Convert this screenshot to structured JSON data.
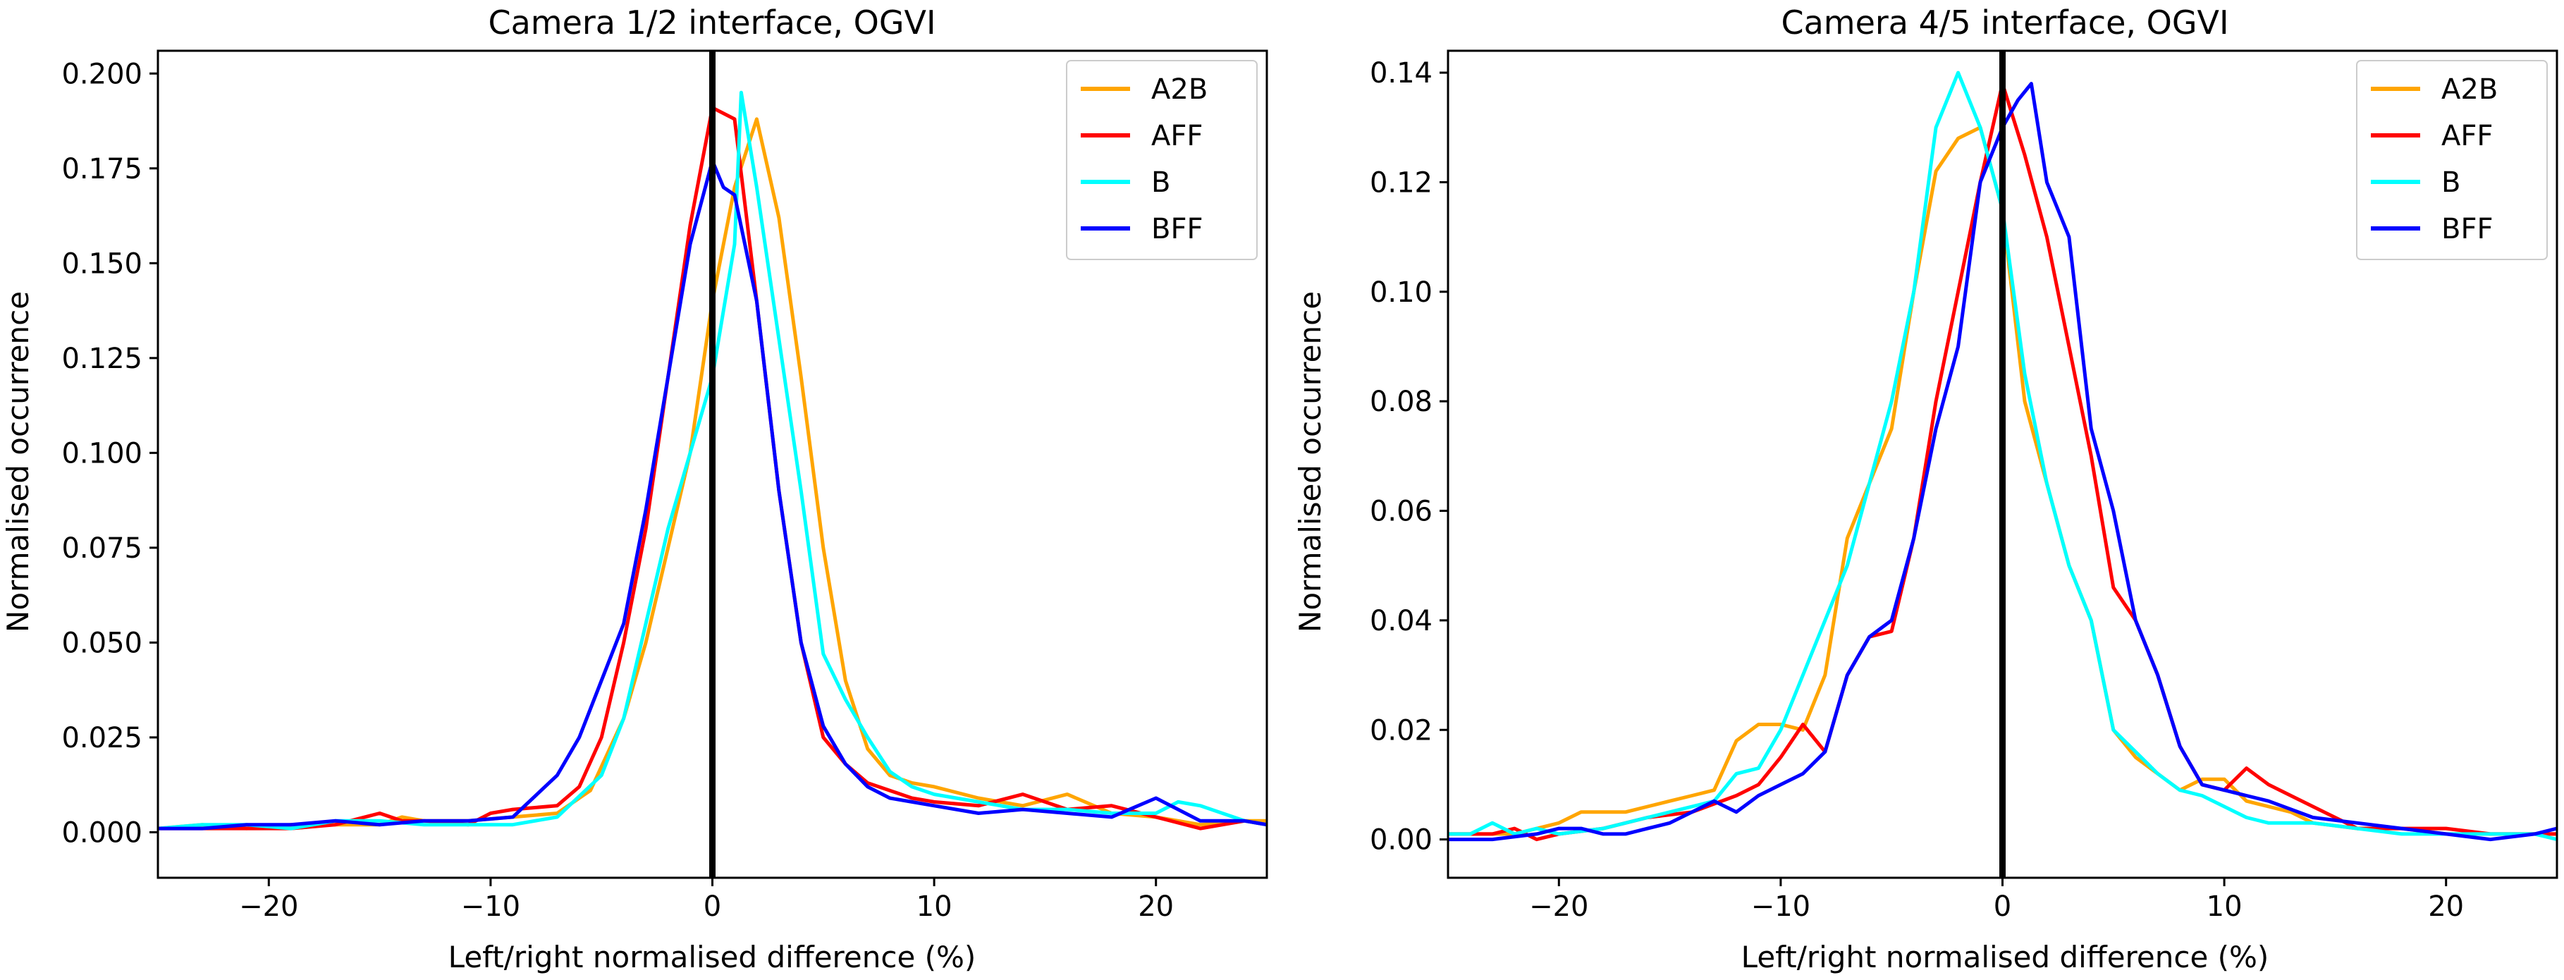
{
  "chart_data": [
    {
      "type": "line",
      "title": "Camera 1/2 interface, OGVI",
      "xlabel": "Left/right normalised difference (%)",
      "ylabel": "Normalised occurrence",
      "xlim": [
        -25,
        25
      ],
      "ylim": [
        -0.012,
        0.206
      ],
      "xticks": [
        -20,
        -10,
        0,
        10,
        20
      ],
      "xtick_labels": [
        "−20",
        "−10",
        "0",
        "10",
        "20"
      ],
      "yticks": [
        0.0,
        0.025,
        0.05,
        0.075,
        0.1,
        0.125,
        0.15,
        0.175,
        0.2
      ],
      "ytick_labels": [
        "0.000",
        "0.025",
        "0.050",
        "0.075",
        "0.100",
        "0.125",
        "0.150",
        "0.175",
        "0.200"
      ],
      "vline_x": 0,
      "legend_position": "upper right",
      "series": [
        {
          "name": "A2B",
          "color": "#ffa500",
          "x": [
            -25,
            -23,
            -21,
            -19,
            -17,
            -15,
            -14,
            -13,
            -11,
            -9,
            -7,
            -5.5,
            -4,
            -3,
            -2,
            -1,
            0,
            1,
            2,
            3,
            4,
            5,
            6,
            7,
            8,
            9,
            10,
            12,
            14,
            16,
            18,
            20,
            22,
            24,
            25
          ],
          "y": [
            0.001,
            0.002,
            0.001,
            0.002,
            0.002,
            0.002,
            0.004,
            0.003,
            0.003,
            0.004,
            0.005,
            0.011,
            0.03,
            0.05,
            0.075,
            0.1,
            0.14,
            0.17,
            0.188,
            0.162,
            0.12,
            0.075,
            0.04,
            0.022,
            0.015,
            0.013,
            0.012,
            0.009,
            0.007,
            0.01,
            0.005,
            0.004,
            0.002,
            0.003,
            0.003
          ]
        },
        {
          "name": "AFF",
          "color": "#ff0000",
          "x": [
            -25,
            -23,
            -21,
            -19,
            -17,
            -15,
            -14,
            -13,
            -11,
            -10,
            -9,
            -7,
            -6,
            -5,
            -4,
            -3,
            -2,
            -1,
            0,
            1,
            2,
            3,
            4,
            5,
            6,
            7,
            8,
            9,
            10,
            12,
            14,
            16,
            18,
            20,
            22,
            24,
            25
          ],
          "y": [
            0.001,
            0.001,
            0.001,
            0.001,
            0.002,
            0.005,
            0.003,
            0.003,
            0.002,
            0.005,
            0.006,
            0.007,
            0.012,
            0.025,
            0.05,
            0.08,
            0.12,
            0.16,
            0.191,
            0.188,
            0.14,
            0.09,
            0.05,
            0.025,
            0.018,
            0.013,
            0.011,
            0.009,
            0.008,
            0.007,
            0.01,
            0.006,
            0.007,
            0.004,
            0.001,
            0.003,
            0.002
          ]
        },
        {
          "name": "B",
          "color": "#00ffff",
          "x": [
            -25,
            -23,
            -21,
            -19,
            -17,
            -15,
            -13,
            -11,
            -9,
            -7,
            -5,
            -4,
            -3,
            -2,
            -1,
            0,
            1,
            1.3,
            2,
            3,
            4,
            5,
            6,
            7,
            8,
            9,
            10,
            12,
            14,
            16,
            18,
            20,
            21,
            22,
            24,
            25
          ],
          "y": [
            0.001,
            0.002,
            0.002,
            0.001,
            0.003,
            0.003,
            0.002,
            0.002,
            0.002,
            0.004,
            0.015,
            0.03,
            0.055,
            0.08,
            0.1,
            0.12,
            0.155,
            0.195,
            0.17,
            0.13,
            0.09,
            0.047,
            0.035,
            0.025,
            0.016,
            0.012,
            0.01,
            0.008,
            0.006,
            0.006,
            0.005,
            0.005,
            0.008,
            0.007,
            0.003,
            0.002
          ]
        },
        {
          "name": "BFF",
          "color": "#0000ff",
          "x": [
            -25,
            -23,
            -21,
            -19,
            -17,
            -15,
            -13,
            -11,
            -9,
            -7,
            -6,
            -5,
            -4,
            -3,
            -2,
            -1,
            0,
            0.5,
            1,
            2,
            3,
            4,
            5,
            6,
            7,
            8,
            9,
            10,
            12,
            14,
            16,
            18,
            20,
            22,
            24,
            25
          ],
          "y": [
            0.001,
            0.001,
            0.002,
            0.002,
            0.003,
            0.002,
            0.003,
            0.003,
            0.004,
            0.015,
            0.025,
            0.04,
            0.055,
            0.085,
            0.12,
            0.155,
            0.177,
            0.17,
            0.168,
            0.14,
            0.09,
            0.05,
            0.028,
            0.018,
            0.012,
            0.009,
            0.008,
            0.007,
            0.005,
            0.006,
            0.005,
            0.004,
            0.009,
            0.003,
            0.003,
            0.002
          ]
        }
      ]
    },
    {
      "type": "line",
      "title": "Camera 4/5 interface, OGVI",
      "xlabel": "Left/right normalised difference (%)",
      "ylabel": "Normalised occurrence",
      "xlim": [
        -25,
        25
      ],
      "ylim": [
        -0.007,
        0.144
      ],
      "xticks": [
        -20,
        -10,
        0,
        10,
        20
      ],
      "xtick_labels": [
        "−20",
        "−10",
        "0",
        "10",
        "20"
      ],
      "yticks": [
        0.0,
        0.02,
        0.04,
        0.06,
        0.08,
        0.1,
        0.12,
        0.14
      ],
      "ytick_labels": [
        "0.00",
        "0.02",
        "0.04",
        "0.06",
        "0.08",
        "0.10",
        "0.12",
        "0.14"
      ],
      "vline_x": 0,
      "legend_position": "upper right",
      "series": [
        {
          "name": "A2B",
          "color": "#ffa500",
          "x": [
            -25,
            -24,
            -22,
            -20,
            -19,
            -18,
            -17,
            -16,
            -15,
            -14,
            -13,
            -12,
            -11,
            -10,
            -9,
            -8,
            -7,
            -6,
            -5,
            -4,
            -3,
            -2,
            -1,
            0,
            1,
            2,
            3,
            4,
            5,
            6,
            7,
            8,
            9,
            10,
            11,
            12,
            13,
            14,
            16,
            18,
            20,
            22,
            24,
            25
          ],
          "y": [
            0.001,
            0.001,
            0.001,
            0.003,
            0.005,
            0.005,
            0.005,
            0.006,
            0.007,
            0.008,
            0.009,
            0.018,
            0.021,
            0.021,
            0.02,
            0.03,
            0.055,
            0.065,
            0.075,
            0.1,
            0.122,
            0.128,
            0.13,
            0.115,
            0.08,
            0.065,
            0.05,
            0.04,
            0.02,
            0.015,
            0.012,
            0.009,
            0.011,
            0.011,
            0.007,
            0.006,
            0.005,
            0.003,
            0.002,
            0.002,
            0.001,
            0.001,
            0.001,
            0.001
          ]
        },
        {
          "name": "AFF",
          "color": "#ff0000",
          "x": [
            -25,
            -23,
            -22,
            -21,
            -20,
            -18,
            -16,
            -14,
            -12,
            -11,
            -10,
            -9,
            -8,
            -7,
            -6,
            -5,
            -4,
            -3,
            -2,
            -1,
            0,
            1,
            2,
            3,
            4,
            5,
            6,
            7,
            8,
            9,
            10,
            11,
            12,
            13,
            14,
            15,
            16,
            18,
            20,
            22,
            24,
            25
          ],
          "y": [
            0.001,
            0.001,
            0.002,
            0.0,
            0.001,
            0.002,
            0.004,
            0.005,
            0.008,
            0.01,
            0.015,
            0.021,
            0.016,
            0.03,
            0.037,
            0.038,
            0.055,
            0.08,
            0.1,
            0.12,
            0.138,
            0.125,
            0.11,
            0.09,
            0.07,
            0.046,
            0.04,
            0.03,
            0.017,
            0.01,
            0.009,
            0.013,
            0.01,
            0.008,
            0.006,
            0.004,
            0.002,
            0.002,
            0.002,
            0.001,
            0.001,
            0.001
          ]
        },
        {
          "name": "B",
          "color": "#00ffff",
          "x": [
            -25,
            -24,
            -23,
            -22,
            -21,
            -20,
            -18,
            -16,
            -14,
            -13,
            -12,
            -11,
            -10,
            -9,
            -8,
            -7,
            -6,
            -5,
            -4,
            -3,
            -2,
            -1,
            0,
            1,
            2,
            3,
            4,
            5,
            6,
            7,
            8,
            9,
            10,
            11,
            12,
            14,
            16,
            18,
            20,
            22,
            24,
            25
          ],
          "y": [
            0.001,
            0.001,
            0.003,
            0.001,
            0.002,
            0.001,
            0.002,
            0.004,
            0.006,
            0.007,
            0.012,
            0.013,
            0.02,
            0.03,
            0.04,
            0.05,
            0.065,
            0.08,
            0.1,
            0.13,
            0.14,
            0.13,
            0.115,
            0.085,
            0.065,
            0.05,
            0.04,
            0.02,
            0.016,
            0.012,
            0.009,
            0.008,
            0.006,
            0.004,
            0.003,
            0.003,
            0.002,
            0.001,
            0.001,
            0.001,
            0.001,
            0.0
          ]
        },
        {
          "name": "BFF",
          "color": "#0000ff",
          "x": [
            -25,
            -23,
            -21,
            -20,
            -19,
            -18,
            -17,
            -16,
            -15,
            -14,
            -13,
            -12,
            -11,
            -10,
            -9,
            -8,
            -7,
            -6,
            -5,
            -4,
            -3,
            -2,
            -1,
            0,
            0.7,
            1.3,
            2,
            3,
            4,
            5,
            6,
            7,
            8,
            9,
            10,
            11,
            12,
            14,
            16,
            18,
            20,
            22,
            24,
            25
          ],
          "y": [
            0.0,
            0.0,
            0.001,
            0.002,
            0.002,
            0.001,
            0.001,
            0.002,
            0.003,
            0.005,
            0.007,
            0.005,
            0.008,
            0.01,
            0.012,
            0.016,
            0.03,
            0.037,
            0.04,
            0.055,
            0.075,
            0.09,
            0.12,
            0.13,
            0.135,
            0.138,
            0.12,
            0.11,
            0.075,
            0.06,
            0.04,
            0.03,
            0.017,
            0.01,
            0.009,
            0.008,
            0.007,
            0.004,
            0.003,
            0.002,
            0.001,
            0.0,
            0.001,
            0.002
          ]
        }
      ]
    }
  ]
}
